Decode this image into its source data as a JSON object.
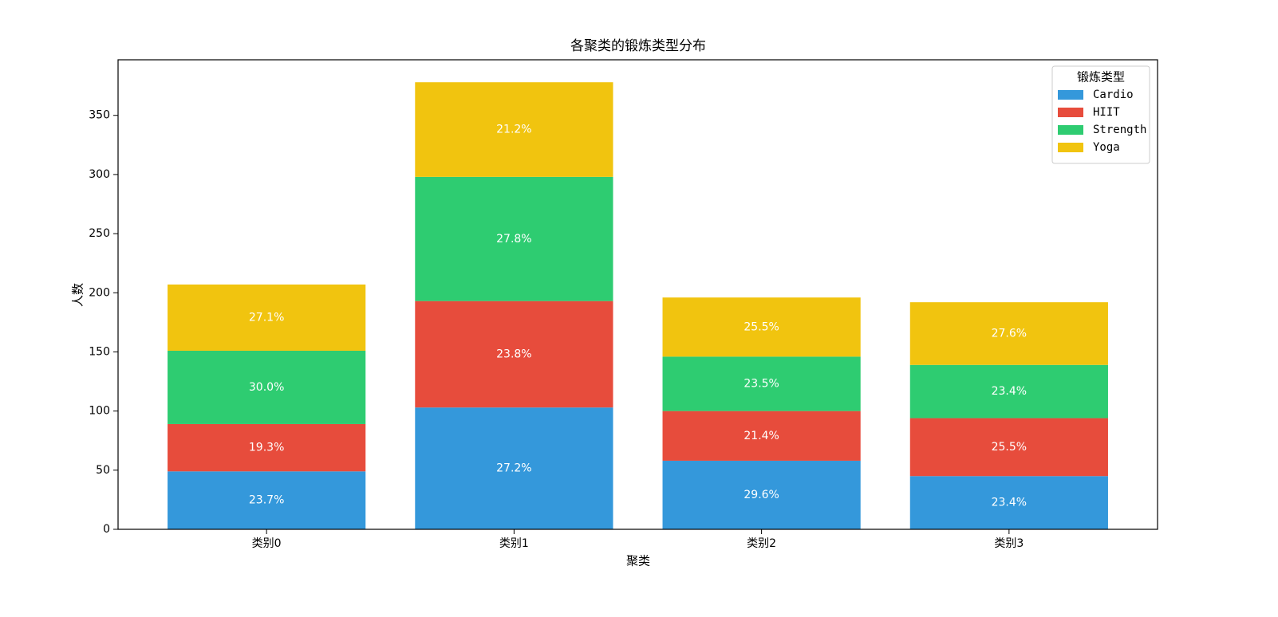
{
  "chart_data": {
    "type": "stacked_bar",
    "title": "各聚类的锻炼类型分布",
    "xlabel": "聚类",
    "ylabel": "人数",
    "categories": [
      "类别0",
      "类别1",
      "类别2",
      "类别3"
    ],
    "series": [
      {
        "name": "Cardio",
        "color": "#3498db",
        "values": [
          49,
          103,
          58,
          45
        ],
        "value_labels": [
          "23.7%",
          "27.2%",
          "29.6%",
          "23.4%"
        ]
      },
      {
        "name": "HIIT",
        "color": "#e74c3c",
        "values": [
          40,
          90,
          42,
          49
        ],
        "value_labels": [
          "19.3%",
          "23.8%",
          "21.4%",
          "25.5%"
        ]
      },
      {
        "name": "Strength",
        "color": "#2ecc71",
        "values": [
          62,
          105,
          46,
          45
        ],
        "value_labels": [
          "30.0%",
          "27.8%",
          "23.5%",
          "23.4%"
        ]
      },
      {
        "name": "Yoga",
        "color": "#f1c40f",
        "values": [
          56,
          80,
          50,
          53
        ],
        "value_labels": [
          "27.1%",
          "21.2%",
          "25.5%",
          "27.6%"
        ]
      }
    ],
    "ylim": [
      0,
      397
    ],
    "yticks": [
      0,
      50,
      100,
      150,
      200,
      250,
      300,
      350
    ],
    "legend_title": "锻炼类型",
    "legend": "upper right"
  }
}
